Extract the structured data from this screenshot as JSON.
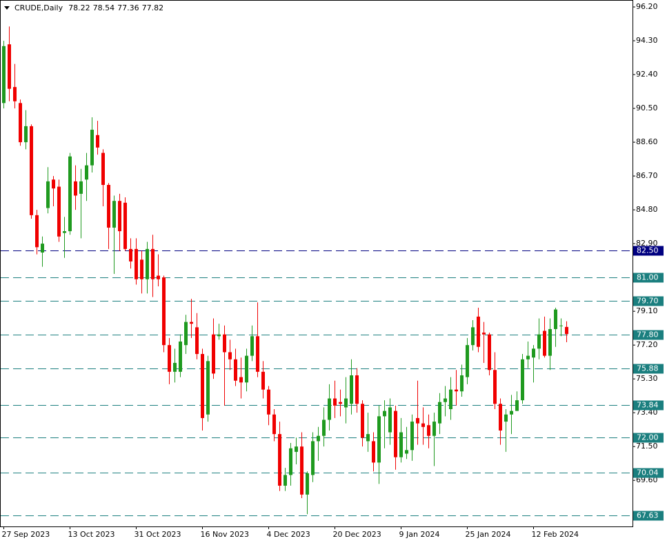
{
  "header": {
    "symbol": "CRUDE,Daily",
    "ohlc": [
      78.22,
      78.54,
      77.36,
      77.82
    ]
  },
  "chart_data": {
    "type": "candlestick",
    "categories": [
      "27 Sep 2023",
      null,
      null,
      null,
      null,
      null,
      null,
      null,
      null,
      null,
      null,
      null,
      "13 Oct 2023",
      null,
      null,
      null,
      null,
      null,
      null,
      null,
      null,
      null,
      null,
      null,
      "31 Oct 2023",
      null,
      null,
      null,
      null,
      null,
      null,
      null,
      null,
      null,
      null,
      null,
      "16 Nov 2023",
      null,
      null,
      null,
      null,
      null,
      null,
      null,
      null,
      null,
      null,
      null,
      "4 Dec 2023",
      null,
      null,
      null,
      null,
      null,
      null,
      null,
      null,
      null,
      null,
      null,
      "20 Dec 2023",
      null,
      null,
      null,
      null,
      null,
      null,
      null,
      null,
      null,
      null,
      null,
      "9 Jan 2024",
      null,
      null,
      null,
      null,
      null,
      null,
      null,
      null,
      null,
      null,
      null,
      "25 Jan 2024",
      null,
      null,
      null,
      null,
      null,
      null,
      null,
      null,
      null,
      null,
      null,
      "12 Feb 2024",
      null,
      null,
      null,
      null,
      null,
      null
    ],
    "open": [
      90.8,
      94.1,
      91.7,
      90.8,
      88.6,
      89.5,
      84.5,
      82.4,
      84.9,
      86.5,
      86.1,
      83.5,
      83.6,
      86.4,
      85.7,
      86.5,
      87.3,
      89.0,
      88.0,
      86.2,
      83.8,
      85.3,
      85.2,
      82.6,
      82.6,
      82.0,
      80.9,
      82.6,
      81.1,
      81.0,
      77.2,
      75.7,
      75.7,
      77.2,
      78.5,
      78.2,
      76.7,
      73.3,
      77.8,
      77.7,
      77.8,
      76.8,
      76.4,
      75.4,
      75.1,
      76.6,
      77.7,
      75.7,
      74.7,
      73.3,
      72.2,
      69.3,
      69.9,
      71.2,
      71.5,
      68.8,
      69.9,
      71.8,
      72.1,
      73.0,
      74.2,
      74.0,
      73.7,
      73.9,
      75.5,
      73.9,
      71.8,
      71.8,
      70.6,
      73.2,
      72.3,
      73.5,
      70.9,
      71.1,
      71.3,
      73.1,
      72.8,
      72.7,
      72.1,
      72.8,
      74.0,
      73.6,
      74.7,
      74.6,
      75.4,
      77.2,
      78.8,
      77.9,
      77.8,
      75.8,
      73.9,
      72.9,
      73.3,
      73.5,
      74.1,
      76.4,
      76.5,
      77.0,
      78.0,
      76.6,
      78.1,
      78.3,
      78.22
    ],
    "high": [
      94.3,
      95.1,
      93.0,
      91.0,
      90.4,
      89.6,
      84.8,
      83.3,
      87.2,
      86.7,
      86.5,
      84.4,
      88.0,
      87.3,
      87.1,
      88.0,
      90.0,
      89.8,
      88.2,
      86.3,
      85.6,
      85.7,
      85.5,
      83.2,
      83.2,
      82.5,
      83.0,
      83.4,
      82.3,
      81.1,
      77.6,
      77.0,
      77.8,
      78.9,
      79.8,
      79.0,
      77.0,
      76.6,
      78.7,
      78.4,
      78.3,
      77.5,
      77.0,
      76.5,
      77.0,
      78.3,
      79.6,
      76.3,
      74.9,
      73.6,
      72.9,
      70.3,
      71.7,
      72.0,
      72.3,
      70.1,
      72.3,
      72.6,
      73.7,
      75.0,
      75.2,
      74.7,
      75.4,
      76.4,
      75.9,
      74.1,
      73.4,
      72.3,
      73.8,
      74.1,
      74.2,
      73.8,
      73.1,
      72.6,
      73.3,
      75.2,
      73.7,
      73.3,
      73.4,
      74.5,
      74.9,
      75.4,
      75.8,
      76.1,
      77.6,
      78.6,
      79.3,
      78.5,
      77.9,
      76.8,
      74.2,
      73.6,
      74.4,
      74.6,
      76.7,
      77.4,
      77.2,
      78.7,
      78.8,
      78.7,
      79.3,
      78.7,
      78.54
    ],
    "low": [
      90.5,
      90.9,
      90.5,
      88.4,
      88.2,
      84.3,
      82.3,
      81.6,
      84.6,
      85.0,
      83.0,
      82.1,
      83.4,
      84.8,
      83.2,
      85.3,
      86.9,
      87.9,
      85.0,
      82.6,
      81.2,
      82.5,
      82.5,
      81.5,
      80.6,
      80.1,
      80.1,
      79.9,
      80.5,
      76.8,
      75.0,
      75.1,
      75.4,
      76.7,
      77.6,
      76.4,
      72.4,
      72.9,
      75.3,
      77.5,
      73.8,
      75.8,
      74.9,
      74.2,
      74.6,
      76.3,
      75.4,
      74.2,
      72.7,
      71.8,
      69.0,
      69.0,
      69.3,
      70.5,
      68.6,
      67.7,
      69.5,
      70.7,
      71.5,
      72.4,
      73.1,
      73.2,
      72.8,
      73.3,
      73.4,
      71.5,
      71.2,
      70.1,
      69.4,
      71.4,
      71.6,
      70.2,
      70.6,
      70.8,
      70.7,
      71.6,
      71.6,
      71.4,
      70.4,
      72.2,
      73.2,
      73.0,
      73.8,
      74.3,
      75.0,
      76.9,
      76.8,
      76.2,
      75.5,
      73.6,
      71.6,
      71.2,
      72.2,
      73.5,
      73.9,
      75.9,
      75.1,
      76.4,
      76.5,
      75.8,
      77.1,
      77.7,
      77.36
    ],
    "close": [
      94.0,
      91.6,
      90.9,
      88.6,
      89.5,
      84.5,
      82.7,
      82.9,
      86.4,
      86.0,
      83.3,
      83.6,
      87.8,
      85.6,
      86.4,
      87.3,
      89.3,
      88.3,
      86.2,
      83.8,
      85.3,
      83.6,
      82.6,
      81.9,
      80.9,
      80.9,
      82.6,
      80.9,
      80.9,
      77.2,
      75.7,
      76.2,
      77.4,
      78.5,
      78.4,
      76.7,
      73.1,
      76.3,
      75.6,
      77.8,
      76.8,
      76.4,
      75.2,
      75.1,
      76.6,
      77.7,
      75.7,
      74.7,
      73.3,
      72.2,
      69.3,
      69.9,
      71.4,
      71.5,
      68.8,
      70.0,
      71.8,
      72.1,
      73.0,
      74.2,
      73.8,
      73.9,
      74.2,
      75.5,
      73.9,
      72.0,
      72.2,
      70.6,
      73.2,
      73.5,
      73.7,
      70.9,
      72.3,
      71.3,
      72.9,
      72.8,
      72.6,
      72.1,
      72.9,
      74.0,
      74.2,
      74.7,
      74.6,
      75.5,
      77.2,
      78.2,
      77.1,
      77.8,
      75.8,
      73.9,
      72.4,
      73.3,
      73.5,
      74.1,
      76.4,
      76.6,
      77.0,
      77.8,
      76.6,
      78.1,
      79.2,
      78.3,
      77.82
    ],
    "up_color": "#1f9a1f",
    "down_color": "#f00000",
    "ylim": [
      67.01,
      96.59
    ],
    "yticks": [
      {
        "value": 96.2,
        "label": "96.20"
      },
      {
        "value": 94.3,
        "label": "94.30"
      },
      {
        "value": 92.4,
        "label": "92.40"
      },
      {
        "value": 90.5,
        "label": "90.50"
      },
      {
        "value": 88.6,
        "label": "88.60"
      },
      {
        "value": 86.7,
        "label": "86.70"
      },
      {
        "value": 84.8,
        "label": "84.80"
      },
      {
        "value": 82.9,
        "label": "82.90"
      },
      {
        "value": 79.1,
        "label": "79.10"
      },
      {
        "value": 77.2,
        "label": "77.20"
      },
      {
        "value": 75.3,
        "label": "75.30"
      },
      {
        "value": 73.4,
        "label": "73.40"
      },
      {
        "value": 71.5,
        "label": "71.50"
      },
      {
        "value": 69.6,
        "label": "69.60"
      }
    ],
    "levels": [
      {
        "value": 82.5,
        "label": "82.50",
        "color": "#000080"
      },
      {
        "value": 81.0,
        "label": "81.00",
        "color": "#1b7f7f"
      },
      {
        "value": 79.7,
        "label": "79.70",
        "color": "#1b7f7f"
      },
      {
        "value": 77.8,
        "label": "77.80",
        "color": "#1b7f7f"
      },
      {
        "value": 75.88,
        "label": "75.88",
        "color": "#1b7f7f"
      },
      {
        "value": 73.84,
        "label": "73.84",
        "color": "#1b7f7f"
      },
      {
        "value": 72.0,
        "label": "72.00",
        "color": "#1b7f7f"
      },
      {
        "value": 70.04,
        "label": "70.04",
        "color": "#1b7f7f"
      },
      {
        "value": 67.63,
        "label": "67.63",
        "color": "#1b7f7f"
      }
    ]
  }
}
